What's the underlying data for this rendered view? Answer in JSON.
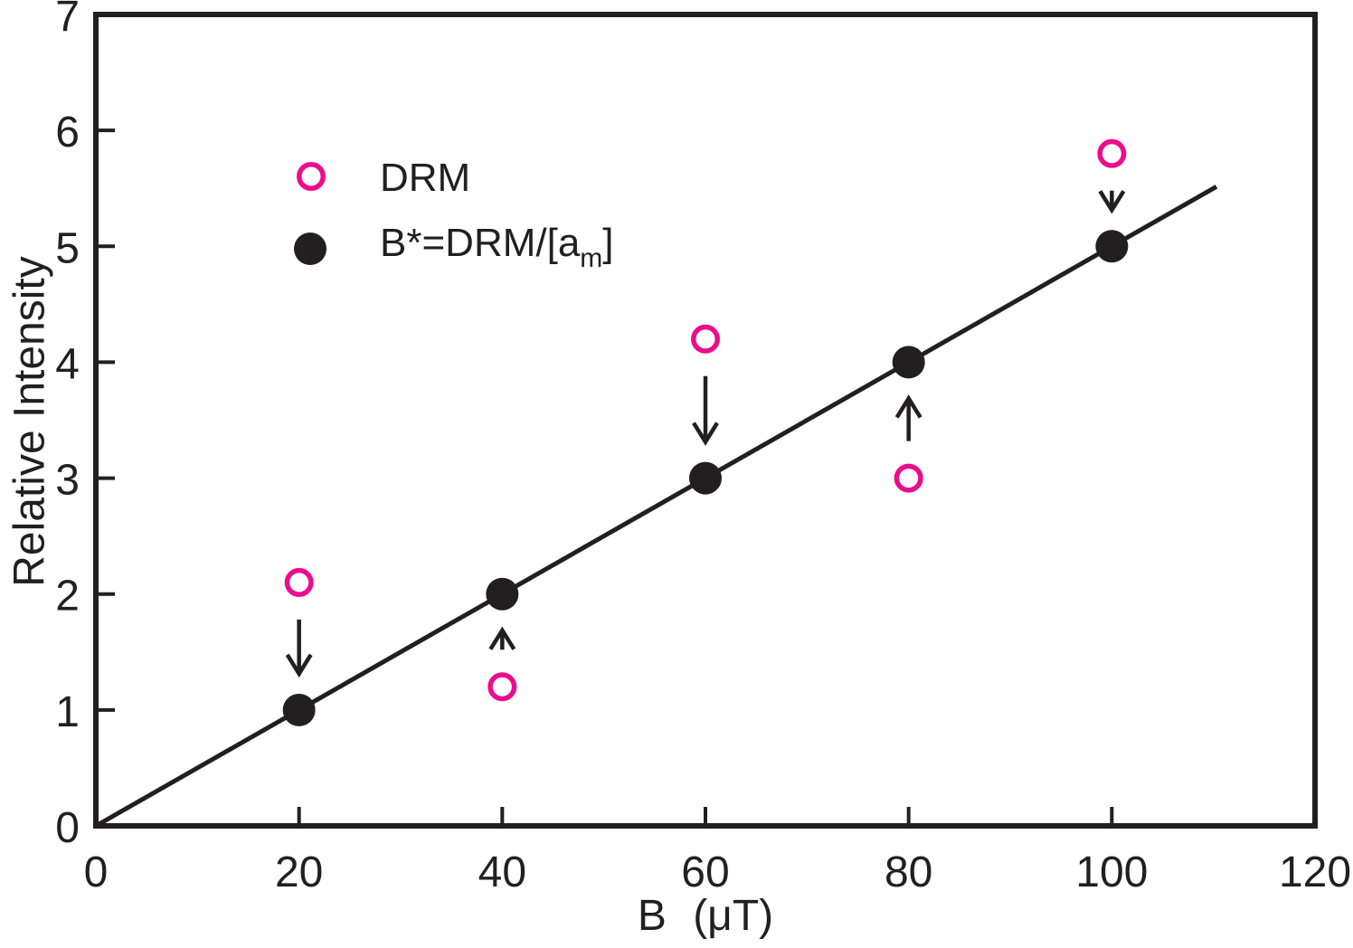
{
  "colors": {
    "ink": "#231f20",
    "accent_magenta": "#ec0c8e",
    "background": "#ffffff"
  },
  "chart_data": {
    "type": "scatter",
    "title": "",
    "xlabel": "B (μT)",
    "ylabel": "Relative Intensity",
    "xlim": [
      0,
      120
    ],
    "ylim": [
      0,
      7
    ],
    "x_ticks": [
      0,
      20,
      40,
      60,
      80,
      100,
      120
    ],
    "y_ticks": [
      0,
      1,
      2,
      3,
      4,
      5,
      6,
      7
    ],
    "grid": false,
    "series": [
      {
        "name": "DRM",
        "marker": "open-circle",
        "color": "#ec0c8e",
        "x": [
          20,
          40,
          60,
          80,
          100
        ],
        "y": [
          2.1,
          1.2,
          4.2,
          3.0,
          5.8
        ]
      },
      {
        "name": "B*=DRM/[aₘ]",
        "marker": "filled-circle",
        "color": "#231f20",
        "x": [
          20,
          40,
          60,
          80,
          100
        ],
        "y": [
          1,
          2,
          3,
          4,
          5
        ]
      }
    ],
    "fit_line": {
      "x0": 0,
      "y0": 0,
      "x1": 110.3,
      "y1": 5.515,
      "slope": 0.05
    },
    "arrows": [
      {
        "x": 20,
        "from_y": 2.1,
        "to_y": 1.0,
        "direction": "down"
      },
      {
        "x": 40,
        "from_y": 1.2,
        "to_y": 2.0,
        "direction": "up"
      },
      {
        "x": 60,
        "from_y": 4.2,
        "to_y": 3.0,
        "direction": "down"
      },
      {
        "x": 80,
        "from_y": 3.0,
        "to_y": 4.0,
        "direction": "up"
      },
      {
        "x": 100,
        "from_y": 5.8,
        "to_y": 5.0,
        "direction": "down"
      }
    ],
    "legend": {
      "position": "upper-left-inside",
      "items": [
        {
          "label": "DRM",
          "marker": "open-circle",
          "color": "#ec0c8e"
        },
        {
          "label": "B*=DRM/[aₘ]",
          "label_parts": {
            "prefix": "B*=DRM/[a",
            "subscript": "m",
            "suffix": "]"
          },
          "marker": "filled-circle",
          "color": "#231f20"
        }
      ]
    }
  }
}
